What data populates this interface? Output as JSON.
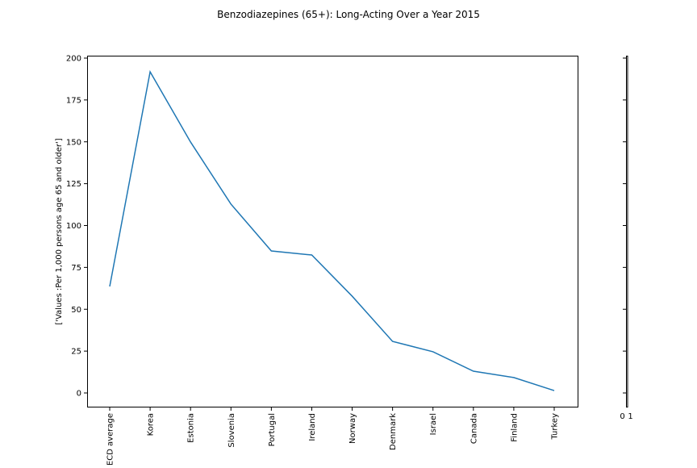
{
  "chart_data": {
    "type": "line",
    "title": "Benzodiazepines (65+): Long-Acting Over a Year 2015",
    "xlabel": "",
    "ylabel": "['Values :Per 1,000 persons age 65 and older']",
    "categories": [
      "OECD average",
      "Korea",
      "Estonia",
      "Slovenia",
      "Portugal",
      "Ireland",
      "Norway",
      "Denmark",
      "Israel",
      "Canada",
      "Finland",
      "Turkey"
    ],
    "series": [
      {
        "name": "Values",
        "color": "#1f77b4",
        "values": [
          63.6,
          191.8,
          149.9,
          112.8,
          84.8,
          82.4,
          57.8,
          30.8,
          24.6,
          13.0,
          9.2,
          1.4
        ]
      }
    ],
    "ylim": [
      -8,
      201.5
    ],
    "yticks": [
      0,
      25,
      50,
      75,
      100,
      125,
      150,
      175,
      200
    ],
    "grid": false,
    "secondary_axis_ticklabels": [
      "0",
      "1"
    ]
  }
}
